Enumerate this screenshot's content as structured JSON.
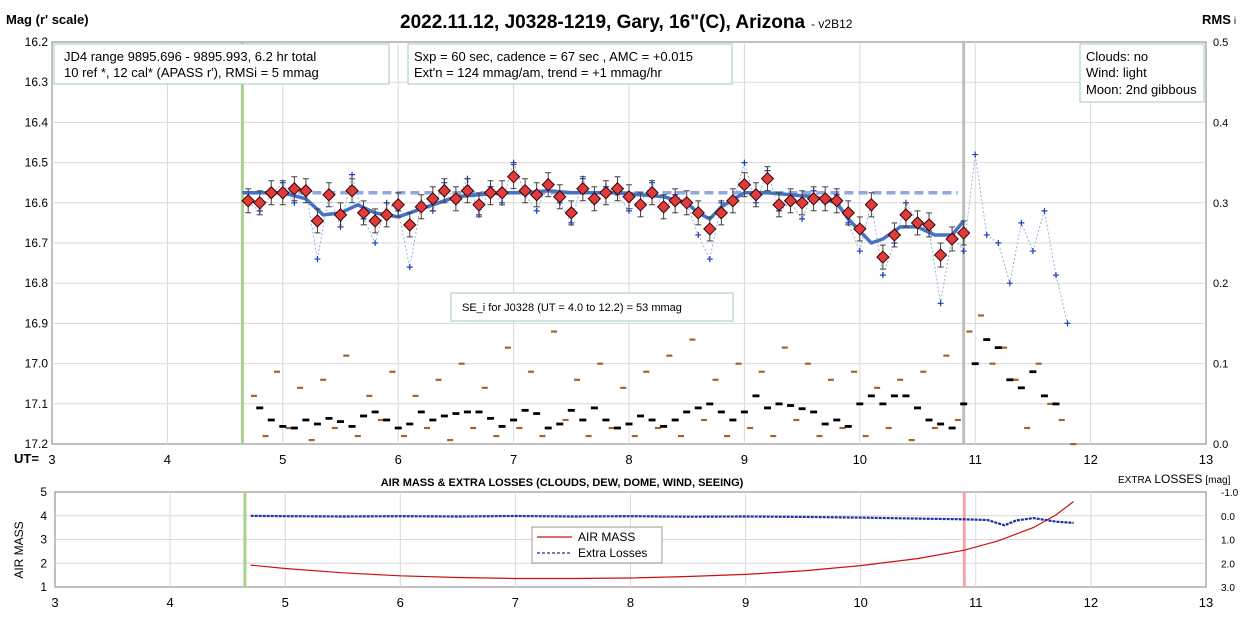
{
  "chart_data": [
    {
      "type": "scatter",
      "title": "2022.11.12, J0328-1219, Gary, 16\"(C), Arizona",
      "title_suffix": "- v2B12",
      "ylabel": "Mag (r' scale)",
      "y2label": "RMS",
      "y2label_suffix": "i",
      "xlabel": "UT=",
      "xlim": [
        3,
        13
      ],
      "ylim": [
        16.2,
        17.2
      ],
      "y_inverted": true,
      "y2lim": [
        0.0,
        0.5
      ],
      "x_ticks": [
        "3",
        "4",
        "5",
        "6",
        "7",
        "8",
        "9",
        "10",
        "11",
        "12",
        "13"
      ],
      "y_ticks": [
        "16.2",
        "16.3",
        "16.4",
        "16.5",
        "16.6",
        "16.7",
        "16.8",
        "16.9",
        "17.0",
        "17.1",
        "17.2"
      ],
      "y2_ticks": [
        "0.5",
        "0.4",
        "0.3",
        "0.2",
        "0.1",
        "0.0"
      ],
      "grid": true,
      "annotations": {
        "box1": [
          "JD4 range 9895.696 - 9895.993, 6.2 hr total",
          "10 ref *, 12 cal*  (APASS r'), RMSi = 5 mmag"
        ],
        "box2": [
          "Sxp = 60 sec, cadence = 67 sec , AMC = +0.015",
          "Ext'n = 124 mmag/am, trend = +1 mmag/hr"
        ],
        "box3": [
          "Clouds: no",
          "Wind: light",
          "Moon: 2nd gibbous"
        ],
        "se_box": "SE_i for J0328 (UT = 4.0 to 12.2) = 53 mmag"
      },
      "vlines": [
        {
          "x": 4.65,
          "color": "#a9d18e"
        },
        {
          "x": 10.9,
          "color": "#bfbfbf"
        }
      ],
      "reference_level": {
        "y": 16.575,
        "x_start": 4.65,
        "x_end": 10.85,
        "color": "#8fa9dc"
      },
      "binned_mag": {
        "color": "#e03c3c",
        "x": [
          4.7,
          4.8,
          4.9,
          5.0,
          5.1,
          5.2,
          5.3,
          5.4,
          5.5,
          5.6,
          5.7,
          5.8,
          5.9,
          6.0,
          6.1,
          6.2,
          6.3,
          6.4,
          6.5,
          6.6,
          6.7,
          6.8,
          6.9,
          7.0,
          7.1,
          7.2,
          7.3,
          7.4,
          7.5,
          7.6,
          7.7,
          7.8,
          7.9,
          8.0,
          8.1,
          8.2,
          8.3,
          8.4,
          8.5,
          8.6,
          8.7,
          8.8,
          8.9,
          9.0,
          9.1,
          9.2,
          9.3,
          9.4,
          9.5,
          9.6,
          9.7,
          9.8,
          9.9,
          10.0,
          10.1,
          10.2,
          10.3,
          10.4,
          10.5,
          10.6,
          10.7,
          10.8,
          10.9
        ],
        "y": [
          16.595,
          16.6,
          16.575,
          16.575,
          16.565,
          16.57,
          16.645,
          16.58,
          16.63,
          16.57,
          16.625,
          16.645,
          16.63,
          16.605,
          16.655,
          16.61,
          16.59,
          16.57,
          16.59,
          16.57,
          16.605,
          16.575,
          16.575,
          16.535,
          16.57,
          16.58,
          16.555,
          16.585,
          16.625,
          16.565,
          16.59,
          16.575,
          16.565,
          16.585,
          16.605,
          16.575,
          16.61,
          16.595,
          16.6,
          16.625,
          16.665,
          16.625,
          16.595,
          16.555,
          16.58,
          16.54,
          16.605,
          16.595,
          16.6,
          16.59,
          16.59,
          16.595,
          16.625,
          16.665,
          16.605,
          16.735,
          16.68,
          16.63,
          16.65,
          16.655,
          16.73,
          16.69,
          16.675
        ]
      },
      "moving_average": {
        "color": "#4472c4",
        "x": [
          4.65,
          4.8,
          5.0,
          5.2,
          5.35,
          5.5,
          5.65,
          5.8,
          6.0,
          6.2,
          6.35,
          6.5,
          6.7,
          6.9,
          7.1,
          7.3,
          7.5,
          7.7,
          7.9,
          8.1,
          8.3,
          8.5,
          8.6,
          8.7,
          8.8,
          9.0,
          9.2,
          9.4,
          9.6,
          9.8,
          9.9,
          10.0,
          10.1,
          10.2,
          10.35,
          10.5,
          10.65,
          10.8,
          10.9
        ],
        "y": [
          16.575,
          16.575,
          16.575,
          16.59,
          16.63,
          16.625,
          16.605,
          16.625,
          16.635,
          16.615,
          16.6,
          16.585,
          16.58,
          16.575,
          16.575,
          16.57,
          16.575,
          16.575,
          16.575,
          16.58,
          16.585,
          16.6,
          16.625,
          16.64,
          16.61,
          16.575,
          16.575,
          16.58,
          16.585,
          16.6,
          16.64,
          16.67,
          16.7,
          16.69,
          16.66,
          16.66,
          16.68,
          16.68,
          16.645
        ]
      },
      "raw_mag": {
        "color": "#1f3fbf",
        "x": [
          4.7,
          4.8,
          4.9,
          5.0,
          5.1,
          5.2,
          5.3,
          5.4,
          5.5,
          5.6,
          5.7,
          5.8,
          5.9,
          6.0,
          6.1,
          6.2,
          6.3,
          6.4,
          6.5,
          6.6,
          6.7,
          6.8,
          6.9,
          7.0,
          7.1,
          7.2,
          7.3,
          7.4,
          7.5,
          7.6,
          7.7,
          7.8,
          7.9,
          8.0,
          8.1,
          8.2,
          8.3,
          8.4,
          8.5,
          8.6,
          8.7,
          8.8,
          8.9,
          9.0,
          9.1,
          9.2,
          9.3,
          9.4,
          9.5,
          9.6,
          9.7,
          9.8,
          9.9,
          10.0,
          10.1,
          10.2,
          10.3,
          10.4,
          10.5,
          10.6,
          10.7,
          10.8,
          10.9,
          11.0,
          11.1,
          11.2,
          11.3,
          11.4,
          11.5,
          11.6,
          11.7,
          11.8
        ],
        "y": [
          16.6,
          16.62,
          16.58,
          16.55,
          16.6,
          16.57,
          16.74,
          16.58,
          16.66,
          16.53,
          16.64,
          16.7,
          16.6,
          16.62,
          16.76,
          16.6,
          16.62,
          16.55,
          16.6,
          16.54,
          16.63,
          16.56,
          16.6,
          16.5,
          16.58,
          16.62,
          16.55,
          16.6,
          16.65,
          16.54,
          16.6,
          16.56,
          16.58,
          16.62,
          16.6,
          16.55,
          16.62,
          16.58,
          16.6,
          16.68,
          16.74,
          16.6,
          16.6,
          16.5,
          16.6,
          16.52,
          16.62,
          16.6,
          16.64,
          16.57,
          16.6,
          16.58,
          16.65,
          16.72,
          16.6,
          16.78,
          16.7,
          16.6,
          16.65,
          16.67,
          16.85,
          16.68,
          16.72,
          16.48,
          16.68,
          16.7,
          16.8,
          16.65,
          16.72,
          16.62,
          16.78,
          16.9
        ]
      },
      "rms_black": {
        "axis": "y2",
        "color": "#000000",
        "x": [
          4.8,
          4.9,
          5.0,
          5.1,
          5.2,
          5.3,
          5.4,
          5.5,
          5.6,
          5.7,
          5.8,
          5.9,
          6.0,
          6.1,
          6.2,
          6.3,
          6.4,
          6.5,
          6.6,
          6.7,
          6.8,
          6.9,
          7.0,
          7.1,
          7.2,
          7.3,
          7.4,
          7.5,
          7.6,
          7.7,
          7.8,
          7.9,
          8.0,
          8.1,
          8.2,
          8.3,
          8.4,
          8.5,
          8.6,
          8.7,
          8.8,
          8.9,
          9.0,
          9.1,
          9.2,
          9.3,
          9.4,
          9.5,
          9.6,
          9.7,
          9.8,
          9.9,
          10.0,
          10.1,
          10.2,
          10.3,
          10.4,
          10.5,
          10.6,
          10.7,
          10.8,
          10.9,
          11.0,
          11.1,
          11.2,
          11.3,
          11.4,
          11.5,
          11.6,
          11.7
        ],
        "y": [
          0.045,
          0.03,
          0.022,
          0.02,
          0.03,
          0.025,
          0.032,
          0.028,
          0.022,
          0.035,
          0.04,
          0.03,
          0.02,
          0.025,
          0.04,
          0.03,
          0.035,
          0.038,
          0.04,
          0.04,
          0.032,
          0.022,
          0.03,
          0.042,
          0.038,
          0.02,
          0.025,
          0.042,
          0.03,
          0.045,
          0.03,
          0.02,
          0.025,
          0.035,
          0.03,
          0.022,
          0.03,
          0.04,
          0.045,
          0.05,
          0.04,
          0.03,
          0.04,
          0.06,
          0.045,
          0.05,
          0.048,
          0.044,
          0.04,
          0.025,
          0.03,
          0.022,
          0.05,
          0.06,
          0.05,
          0.06,
          0.06,
          0.045,
          0.03,
          0.025,
          0.02,
          0.05,
          0.1,
          0.13,
          0.12,
          0.08,
          0.07,
          0.09,
          0.06,
          0.05
        ]
      },
      "rms_brown": {
        "axis": "y2",
        "color": "#a0642a",
        "x": [
          4.75,
          4.85,
          4.95,
          5.05,
          5.15,
          5.25,
          5.35,
          5.45,
          5.55,
          5.65,
          5.75,
          5.85,
          5.95,
          6.05,
          6.15,
          6.25,
          6.35,
          6.45,
          6.55,
          6.65,
          6.75,
          6.85,
          6.95,
          7.05,
          7.15,
          7.25,
          7.35,
          7.45,
          7.55,
          7.65,
          7.75,
          7.85,
          7.95,
          8.05,
          8.15,
          8.25,
          8.35,
          8.45,
          8.55,
          8.65,
          8.75,
          8.85,
          8.95,
          9.05,
          9.15,
          9.25,
          9.35,
          9.45,
          9.55,
          9.65,
          9.75,
          9.85,
          9.95,
          10.05,
          10.15,
          10.25,
          10.35,
          10.45,
          10.55,
          10.65,
          10.75,
          10.85,
          10.95,
          11.05,
          11.15,
          11.25,
          11.35,
          11.45,
          11.55,
          11.65,
          11.75,
          11.85
        ],
        "y": [
          0.06,
          0.01,
          0.09,
          0.02,
          0.07,
          0.005,
          0.08,
          0.02,
          0.11,
          0.01,
          0.06,
          0.03,
          0.09,
          0.01,
          0.06,
          0.02,
          0.08,
          0.005,
          0.1,
          0.02,
          0.07,
          0.01,
          0.12,
          0.02,
          0.09,
          0.01,
          0.14,
          0.03,
          0.08,
          0.01,
          0.1,
          0.02,
          0.07,
          0.01,
          0.09,
          0.02,
          0.11,
          0.01,
          0.13,
          0.03,
          0.08,
          0.01,
          0.1,
          0.02,
          0.09,
          0.01,
          0.12,
          0.03,
          0.1,
          0.01,
          0.08,
          0.02,
          0.09,
          0.01,
          0.07,
          0.02,
          0.08,
          0.005,
          0.09,
          0.02,
          0.11,
          0.03,
          0.14,
          0.16,
          0.1,
          0.12,
          0.08,
          0.02,
          0.1,
          0.05,
          0.03,
          0.0
        ]
      }
    },
    {
      "type": "line",
      "title": "AIR MASS & EXTRA LOSSES (CLOUDS, DEW, DOME, WIND, SEEING)",
      "ylabel": "AIR MASS",
      "y2label_small": "EXTRA",
      "y2label_big": "LOSSES",
      "y2label_unit": "[mag]",
      "xlim": [
        3,
        13
      ],
      "ylim": [
        1,
        5
      ],
      "y2lim": [
        -1.0,
        3.0
      ],
      "y2_inverted": true,
      "x_ticks": [
        "3",
        "4",
        "5",
        "6",
        "7",
        "8",
        "9",
        "10",
        "11",
        "12",
        "13"
      ],
      "y_ticks": [
        "5",
        "4",
        "3",
        "2",
        "1"
      ],
      "y2_ticks": [
        "-1.0",
        "0.0",
        "1.0",
        "2.0",
        "3.0"
      ],
      "grid": true,
      "legend_position": "center",
      "vlines": [
        {
          "x": 4.65,
          "color": "#a9d18e"
        },
        {
          "x": 10.9,
          "color": "#f4a6a6"
        }
      ],
      "series": [
        {
          "name": "AIR MASS",
          "color": "#cc1010",
          "axis": "y",
          "x": [
            4.7,
            5.0,
            5.5,
            6.0,
            6.5,
            7.0,
            7.5,
            8.0,
            8.5,
            9.0,
            9.5,
            10.0,
            10.5,
            10.9,
            11.2,
            11.5,
            11.7,
            11.85
          ],
          "y": [
            1.92,
            1.78,
            1.6,
            1.47,
            1.4,
            1.36,
            1.36,
            1.38,
            1.44,
            1.53,
            1.68,
            1.9,
            2.2,
            2.55,
            2.95,
            3.5,
            4.05,
            4.6
          ]
        },
        {
          "name": "Extra Losses",
          "color": "#1f2fa0",
          "axis": "y2",
          "x": [
            4.7,
            5.0,
            5.5,
            6.0,
            6.5,
            7.0,
            7.5,
            8.0,
            8.5,
            9.0,
            9.5,
            10.0,
            10.5,
            10.9,
            11.1,
            11.25,
            11.35,
            11.5,
            11.7,
            11.85
          ],
          "y": [
            0.0,
            0.02,
            0.03,
            0.02,
            0.03,
            0.01,
            0.03,
            0.02,
            0.04,
            0.03,
            0.05,
            0.08,
            0.12,
            0.15,
            0.18,
            0.4,
            0.2,
            0.1,
            0.25,
            0.3
          ]
        }
      ]
    }
  ]
}
